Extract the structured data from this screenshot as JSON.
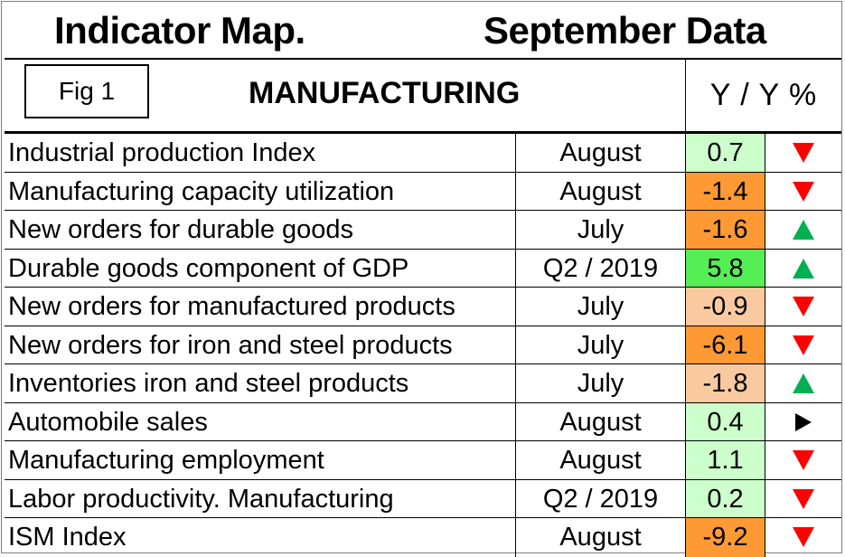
{
  "title": {
    "left": "Indicator Map.",
    "right": "September Data"
  },
  "header": {
    "figure_label": "Fig 1",
    "section_title": "MANUFACTURING",
    "value_column": "Y / Y %"
  },
  "colors": {
    "light_green": "#ccffcc",
    "green": "#55ee55",
    "orange": "#ff9933",
    "light_orange": "#fbc9a0",
    "arrow_down": "#ff0000",
    "arrow_up": "#00b050",
    "arrow_right": "#000000"
  },
  "rows": [
    {
      "indicator": "Industrial production Index",
      "period": "August",
      "value": "0.7",
      "fill": "#ccffcc",
      "trend": "down"
    },
    {
      "indicator": "Manufacturing capacity utilization",
      "period": "August",
      "value": "-1.4",
      "fill": "#ff9933",
      "trend": "down"
    },
    {
      "indicator": "New orders for durable goods",
      "period": "July",
      "value": "-1.6",
      "fill": "#ff9933",
      "trend": "up"
    },
    {
      "indicator": "Durable goods component of GDP",
      "period": "Q2 / 2019",
      "value": "5.8",
      "fill": "#55ee55",
      "trend": "up"
    },
    {
      "indicator": "New orders for manufactured products",
      "period": "July",
      "value": "-0.9",
      "fill": "#fbc9a0",
      "trend": "down"
    },
    {
      "indicator": "New orders for iron and steel products",
      "period": "July",
      "value": "-6.1",
      "fill": "#ff9933",
      "trend": "down"
    },
    {
      "indicator": "Inventories iron and steel products",
      "period": "July",
      "value": "-1.8",
      "fill": "#fbc9a0",
      "trend": "up"
    },
    {
      "indicator": "Automobile sales",
      "period": "August",
      "value": "0.4",
      "fill": "#ccffcc",
      "trend": "right"
    },
    {
      "indicator": "Manufacturing employment",
      "period": "August",
      "value": "1.1",
      "fill": "#ccffcc",
      "trend": "down"
    },
    {
      "indicator": "Labor productivity. Manufacturing",
      "period": "Q2 / 2019",
      "value": "0.2",
      "fill": "#ccffcc",
      "trend": "down"
    },
    {
      "indicator": "ISM Index",
      "period": "August",
      "value": "-9.2",
      "fill": "#ff9933",
      "trend": "down"
    }
  ]
}
